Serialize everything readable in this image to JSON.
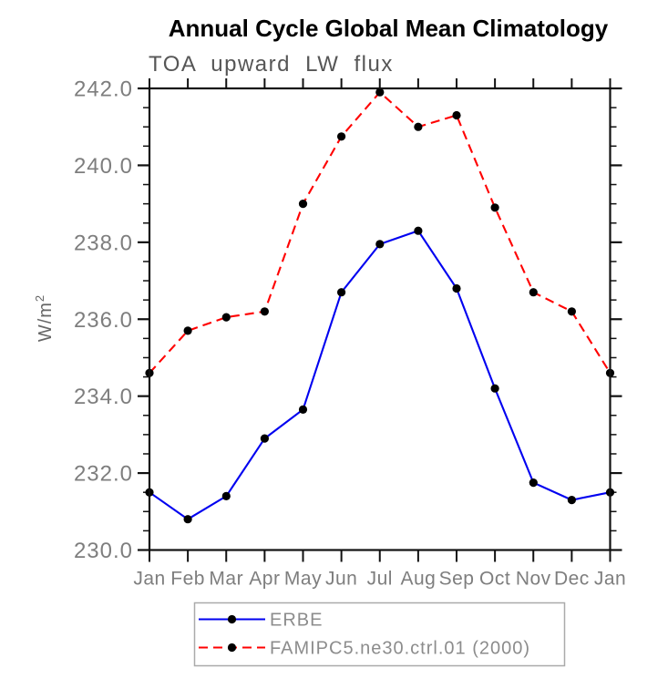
{
  "header": {
    "title": "Annual Cycle Global Mean Climatology",
    "subtitle": "TOA upward LW flux"
  },
  "axes": {
    "ylabel_base": "W/m",
    "ylabel_sup": "2"
  },
  "chart_data": {
    "type": "line",
    "title": "Annual Cycle Global Mean Climatology",
    "subtitle": "TOA upward LW flux",
    "ylabel": "W/m^2",
    "xlabel": "",
    "categories": [
      "Jan",
      "Feb",
      "Mar",
      "Apr",
      "May",
      "Jun",
      "Jul",
      "Aug",
      "Sep",
      "Oct",
      "Nov",
      "Dec",
      "Jan"
    ],
    "series": [
      {
        "name": "ERBE",
        "color": "#0000f0",
        "line_style": "solid",
        "marker": "filled-circle",
        "marker_color": "#000000",
        "values": [
          231.5,
          230.8,
          231.4,
          232.9,
          233.65,
          236.7,
          237.95,
          238.3,
          236.8,
          234.2,
          231.75,
          231.3,
          231.5
        ]
      },
      {
        "name": "FAMIPC5.ne30.ctrl.01 (2000)",
        "color": "#ff0000",
        "line_style": "dashed",
        "marker": "filled-circle",
        "marker_color": "#000000",
        "values": [
          234.6,
          235.7,
          236.05,
          236.2,
          239.0,
          240.75,
          241.9,
          241.0,
          241.3,
          238.9,
          236.7,
          236.2,
          234.6
        ]
      }
    ],
    "ylim": [
      230.0,
      242.0
    ],
    "ytick_major_step": 2.0,
    "ytick_minor_step": 0.5,
    "ytick_labels": [
      "230.0",
      "232.0",
      "234.0",
      "236.0",
      "238.0",
      "240.0",
      "242.0"
    ],
    "grid": false,
    "legend_position": "bottom",
    "frame": true
  }
}
